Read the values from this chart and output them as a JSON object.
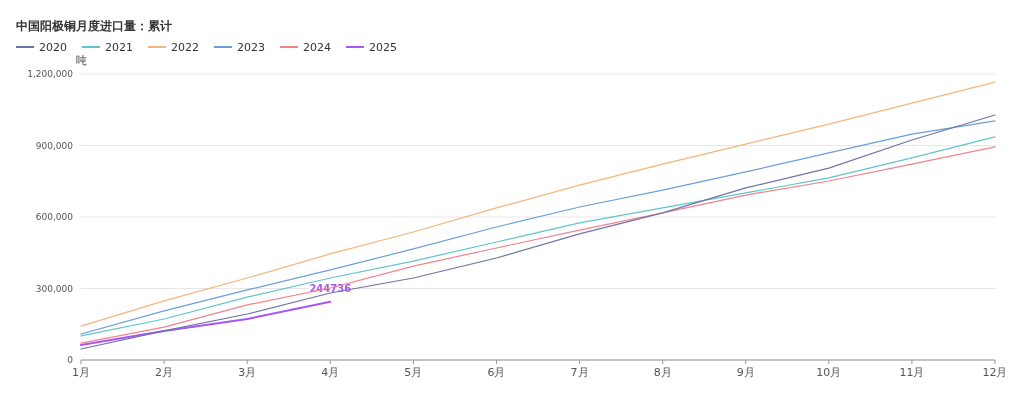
{
  "chart_data": {
    "type": "line",
    "title": "中国阳极铜月度进口量：累计",
    "ylabel": "吨",
    "categories": [
      "1月",
      "2月",
      "3月",
      "4月",
      "5月",
      "6月",
      "7月",
      "8月",
      "9月",
      "10月",
      "11月",
      "12月"
    ],
    "ylim": [
      0,
      1200000
    ],
    "yticks": [
      0,
      {
        "value": 300000,
        "label": "300,000"
      },
      {
        "value": 600000,
        "label": "600,000"
      },
      {
        "value": 900000,
        "label": "900,000"
      },
      {
        "value": 1200000,
        "label": "1,200,000"
      }
    ],
    "grid": "y",
    "legend": "top left",
    "marker": "none",
    "line_style": "solid",
    "series": [
      {
        "name": "2020",
        "color": "#6f74a8",
        "values": [
          46000,
          122000,
          193000,
          281000,
          344000,
          428000,
          529000,
          617000,
          722000,
          805000,
          923000,
          1028000
        ]
      },
      {
        "name": "2021",
        "color": "#5fc5ce",
        "values": [
          101000,
          172000,
          264000,
          344000,
          415000,
          495000,
          575000,
          638000,
          701000,
          764000,
          848000,
          936000
        ]
      },
      {
        "name": "2022",
        "color": "#f5b57a",
        "values": [
          142000,
          248000,
          344000,
          445000,
          537000,
          638000,
          734000,
          822000,
          906000,
          990000,
          1078000,
          1166000
        ]
      },
      {
        "name": "2023",
        "color": "#6a9fd8",
        "values": [
          109000,
          206000,
          294000,
          378000,
          466000,
          558000,
          642000,
          713000,
          789000,
          869000,
          948000,
          1003000
        ]
      },
      {
        "name": "2024",
        "color": "#f2838a",
        "values": [
          71000,
          138000,
          231000,
          302000,
          394000,
          470000,
          545000,
          617000,
          692000,
          751000,
          822000,
          894000
        ]
      },
      {
        "name": "2025",
        "color": "#a855f7",
        "values": [
          63000,
          122000,
          172000,
          244736,
          null,
          null,
          null,
          null,
          null,
          null,
          null,
          null
        ],
        "value_labels": [
          null,
          null,
          null,
          "244736",
          null,
          null,
          null,
          null,
          null,
          null,
          null,
          null
        ]
      }
    ]
  }
}
